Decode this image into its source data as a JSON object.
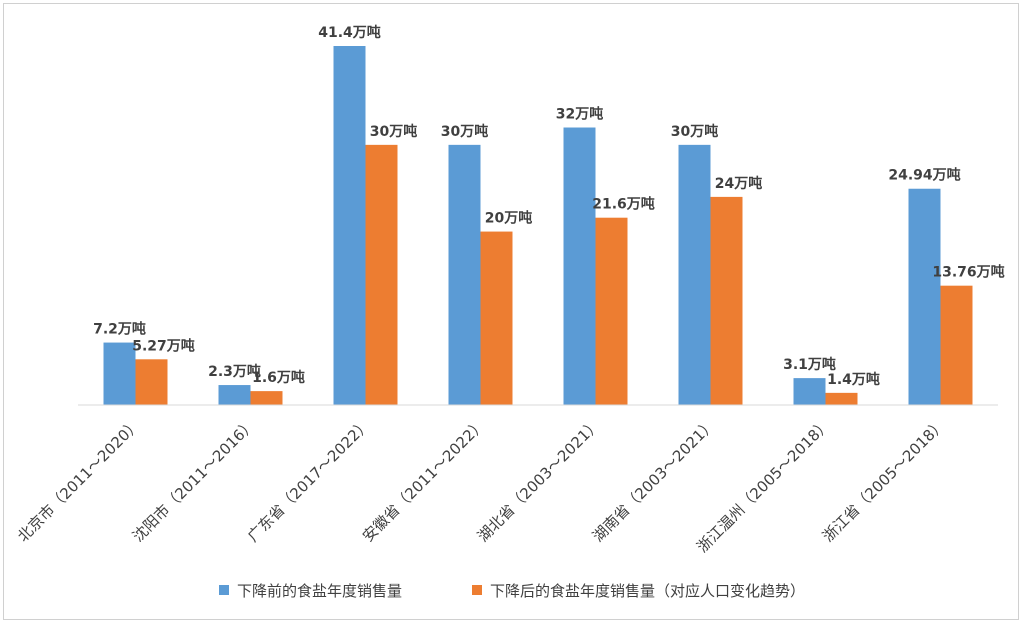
{
  "chart_data": {
    "type": "bar",
    "categories": [
      "北京市（2011～2020）",
      "沈阳市（2011～2016）",
      "广东省（2017～2022）",
      "安徽省（2011～2022）",
      "湖北省（2003～2021）",
      "湖南省（2003～2021）",
      "浙江温州（2005～2018）",
      "浙江省（2005～2018）"
    ],
    "series": [
      {
        "name": "下降前的食盐年度销售量",
        "color": "#5b9bd5",
        "values": [
          7.2,
          2.3,
          41.4,
          30,
          32,
          30,
          3.1,
          24.94
        ],
        "labels": [
          "7.2万吨",
          "2.3万吨",
          "41.4万吨",
          "30万吨",
          "32万吨",
          "30万吨",
          "3.1万吨",
          "24.94万吨"
        ]
      },
      {
        "name": "下降后的食盐年度销售量（对应人口变化趋势）",
        "color": "#ed7d31",
        "values": [
          5.27,
          1.6,
          30,
          20,
          21.6,
          24,
          1.4,
          13.76
        ],
        "labels": [
          "5.27万吨",
          "1.6万吨",
          "30万吨",
          "20万吨",
          "21.6万吨",
          "24万吨",
          "1.4万吨",
          "13.76万吨"
        ]
      }
    ],
    "title": "",
    "xlabel": "",
    "ylabel": "",
    "ylim": [
      0,
      41.4
    ],
    "grid": false,
    "legend_position": "bottom"
  }
}
